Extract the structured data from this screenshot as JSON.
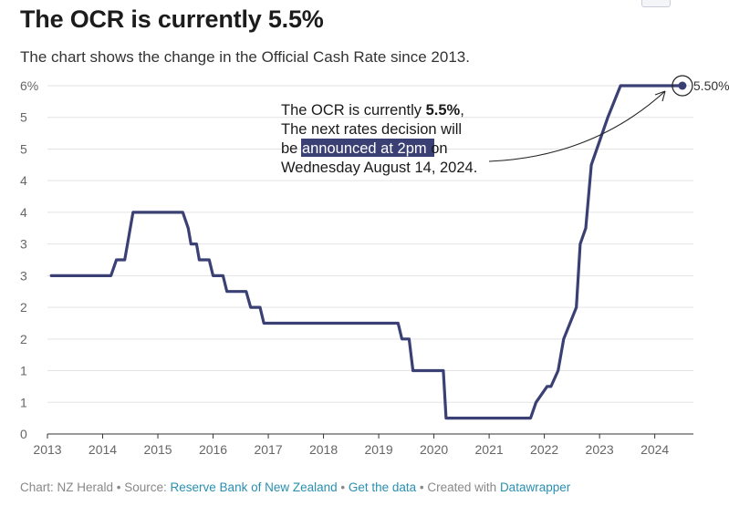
{
  "header": {
    "title": "The OCR is currently 5.5%",
    "subtitle": "The chart shows the change in the Official Cash Rate since 2013."
  },
  "chart_data": {
    "type": "line",
    "title": "The OCR is currently 5.5%",
    "subtitle": "The chart shows the change in the Official Cash Rate since 2013.",
    "xlabel": "",
    "ylabel": "",
    "xlim": [
      2013,
      2024.7
    ],
    "ylim": [
      0,
      5.5
    ],
    "y_ticks": [
      {
        "value": 0,
        "label": "0"
      },
      {
        "value": 0.5,
        "label": "1"
      },
      {
        "value": 1.0,
        "label": "1"
      },
      {
        "value": 1.5,
        "label": "2"
      },
      {
        "value": 2.0,
        "label": "2"
      },
      {
        "value": 2.5,
        "label": "3"
      },
      {
        "value": 3.0,
        "label": "3"
      },
      {
        "value": 3.5,
        "label": "4"
      },
      {
        "value": 4.0,
        "label": "4"
      },
      {
        "value": 4.5,
        "label": "5"
      },
      {
        "value": 5.0,
        "label": "5"
      },
      {
        "value": 5.5,
        "label": "6%"
      }
    ],
    "x_ticks": [
      {
        "value": 2013,
        "label": "2013"
      },
      {
        "value": 2014,
        "label": "2014"
      },
      {
        "value": 2015,
        "label": "2015"
      },
      {
        "value": 2016,
        "label": "2016"
      },
      {
        "value": 2017,
        "label": "2017"
      },
      {
        "value": 2018,
        "label": "2018"
      },
      {
        "value": 2019,
        "label": "2019"
      },
      {
        "value": 2020,
        "label": "2020"
      },
      {
        "value": 2021,
        "label": "2021"
      },
      {
        "value": 2022,
        "label": "2022"
      },
      {
        "value": 2023,
        "label": "2023"
      },
      {
        "value": 2024,
        "label": "2024"
      }
    ],
    "grid": true,
    "color": "#3a4073",
    "highlight_color": "#3a4073",
    "series": [
      {
        "name": "Official Cash Rate",
        "x": [
          2013.07,
          2014.15,
          2014.25,
          2014.4,
          2014.55,
          2015.45,
          2015.55,
          2015.6,
          2015.7,
          2015.75,
          2015.93,
          2016.0,
          2016.18,
          2016.25,
          2016.6,
          2016.68,
          2016.85,
          2016.92,
          2019.35,
          2019.42,
          2019.55,
          2019.62,
          2020.17,
          2020.22,
          2021.75,
          2021.85,
          2022.05,
          2022.12,
          2022.25,
          2022.35,
          2022.58,
          2022.65,
          2022.75,
          2022.85,
          2023.15,
          2023.38,
          2024.5
        ],
        "y": [
          2.5,
          2.5,
          2.75,
          2.75,
          3.5,
          3.5,
          3.25,
          3.0,
          3.0,
          2.75,
          2.75,
          2.5,
          2.5,
          2.25,
          2.25,
          2.0,
          2.0,
          1.75,
          1.75,
          1.5,
          1.5,
          1.0,
          1.0,
          0.25,
          0.25,
          0.5,
          0.75,
          0.75,
          1.0,
          1.5,
          2.0,
          3.0,
          3.25,
          4.25,
          5.0,
          5.5,
          5.5
        ]
      }
    ],
    "end_point": {
      "x": 2024.5,
      "y": 5.5,
      "label": "5.50%"
    },
    "annotation": {
      "line1_pre": "The OCR is currently ",
      "line1_bold": "5.5%",
      "line1_post": ",",
      "line2": "The next rates decision will",
      "line3_pre": "be ",
      "line3_highlight": "announced at 2pm",
      "line3_post": " on",
      "line4": "Wednesday August 14, 2024."
    }
  },
  "footer": {
    "prefix": "Chart: NZ Herald • Source: ",
    "source_link": "Reserve Bank of New Zealand",
    "sep1": " • ",
    "data_link": "Get the data",
    "sep2": " • Created with ",
    "tool_link": "Datawrapper"
  }
}
